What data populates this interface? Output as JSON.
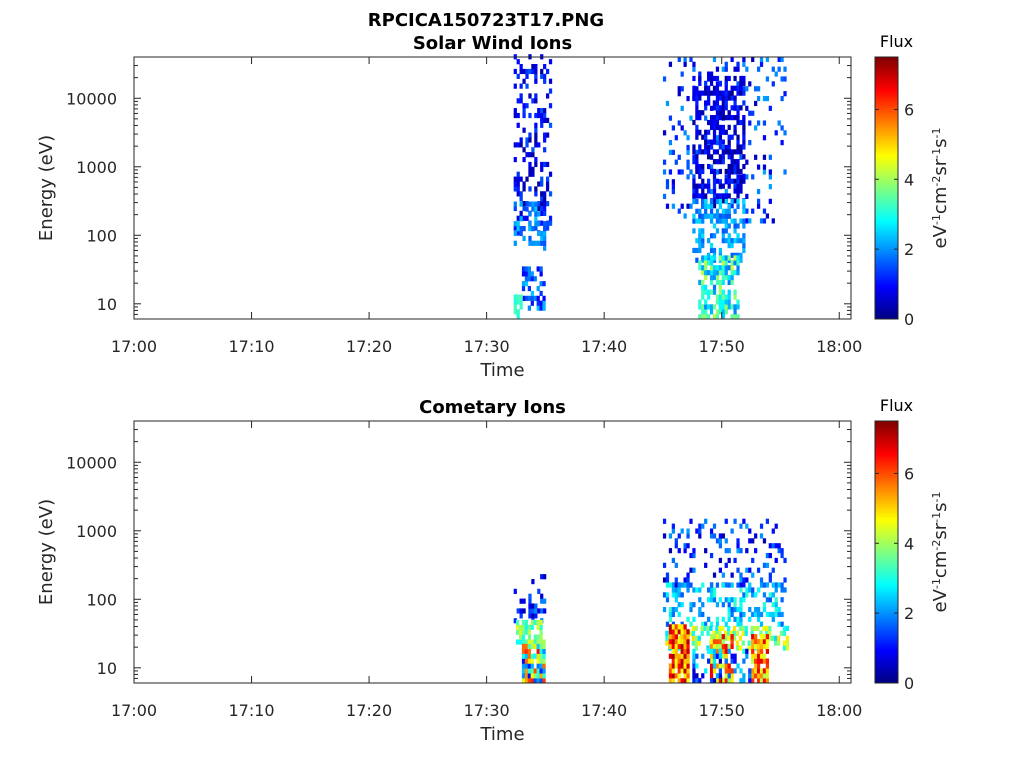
{
  "figure_title": "RPCICA150723T17.PNG",
  "chart_data": [
    {
      "type": "heatmap",
      "title": "Solar Wind Ions",
      "xlabel": "Time",
      "ylabel": "Energy (eV)",
      "y_scale": "log",
      "xlim_min": [
        0,
        61
      ],
      "ylim": [
        6,
        40000
      ],
      "x_ticks": [
        "17:00",
        "17:10",
        "17:20",
        "17:30",
        "17:40",
        "17:50",
        "18:00"
      ],
      "y_ticks": [
        "10",
        "100",
        "1000",
        "10000"
      ],
      "colorbar": {
        "title": "Flux",
        "label": "eV-1cm-2sr-1s-1",
        "range": [
          0,
          7.5
        ],
        "ticks": [
          "0",
          "2",
          "4",
          "6"
        ],
        "colormap": "jet"
      },
      "regions": [
        {
          "t": [
            32.3,
            35.5
          ],
          "e": [
            100,
            40000
          ],
          "density": 0.35,
          "flux": [
            0.2,
            1.6
          ]
        },
        {
          "t": [
            32.3,
            35.0
          ],
          "e": [
            60,
            300
          ],
          "density": 0.35,
          "flux": [
            1.5,
            2.5
          ]
        },
        {
          "t": [
            33.0,
            35.0
          ],
          "e": [
            8,
            35
          ],
          "density": 0.45,
          "flux": [
            0.8,
            2.5
          ]
        },
        {
          "t": [
            32.3,
            32.9
          ],
          "e": [
            6,
            12
          ],
          "density": 0.8,
          "flux": [
            3.0,
            3.4
          ]
        },
        {
          "t": [
            45.0,
            55.5
          ],
          "e": [
            150,
            40000
          ],
          "density": 0.12,
          "flux": [
            0.4,
            2.2
          ]
        },
        {
          "t": [
            47.5,
            52.0
          ],
          "e": [
            250,
            20000
          ],
          "density": 0.55,
          "flux": [
            0.1,
            1.3
          ]
        },
        {
          "t": [
            47.5,
            52.0
          ],
          "e": [
            40,
            300
          ],
          "density": 0.5,
          "flux": [
            1.5,
            2.6
          ]
        },
        {
          "t": [
            48.0,
            51.5
          ],
          "e": [
            6,
            45
          ],
          "density": 0.65,
          "flux": [
            1.8,
            4.3
          ]
        }
      ]
    },
    {
      "type": "heatmap",
      "title": "Cometary Ions",
      "xlabel": "Time",
      "ylabel": "Energy (eV)",
      "y_scale": "log",
      "xlim_min": [
        0,
        61
      ],
      "ylim": [
        6,
        40000
      ],
      "x_ticks": [
        "17:00",
        "17:10",
        "17:20",
        "17:30",
        "17:40",
        "17:50",
        "18:00"
      ],
      "y_ticks": [
        "10",
        "100",
        "1000",
        "10000"
      ],
      "colorbar": {
        "title": "Flux",
        "label": "eV-1cm-2sr-1s-1",
        "range": [
          0,
          7.5
        ],
        "ticks": [
          "0",
          "2",
          "4",
          "6"
        ],
        "colormap": "jet"
      },
      "regions": [
        {
          "t": [
            32.3,
            35.0
          ],
          "e": [
            45,
            200
          ],
          "density": 0.3,
          "flux": [
            0.3,
            2.0
          ]
        },
        {
          "t": [
            32.5,
            35.0
          ],
          "e": [
            22,
            45
          ],
          "density": 0.7,
          "flux": [
            2.8,
            4.5
          ]
        },
        {
          "t": [
            33.0,
            35.0
          ],
          "e": [
            6,
            22
          ],
          "density": 0.9,
          "flux": [
            1.0,
            6.5
          ]
        },
        {
          "t": [
            45.0,
            55.5
          ],
          "e": [
            150,
            1300
          ],
          "density": 0.2,
          "flux": [
            0.3,
            2.2
          ]
        },
        {
          "t": [
            45.0,
            55.5
          ],
          "e": [
            40,
            150
          ],
          "density": 0.35,
          "flux": [
            1.5,
            3.2
          ]
        },
        {
          "t": [
            45.2,
            55.5
          ],
          "e": [
            18,
            40
          ],
          "density": 0.55,
          "flux": [
            2.5,
            5.0
          ]
        },
        {
          "t": [
            45.5,
            47.2
          ],
          "e": [
            6,
            40
          ],
          "density": 0.9,
          "flux": [
            4.5,
            7.2
          ]
        },
        {
          "t": [
            49.0,
            51.0
          ],
          "e": [
            6,
            30
          ],
          "density": 0.8,
          "flux": [
            3.5,
            6.8
          ]
        },
        {
          "t": [
            52.5,
            54.0
          ],
          "e": [
            6,
            30
          ],
          "density": 0.8,
          "flux": [
            4.0,
            6.8
          ]
        },
        {
          "t": [
            47.5,
            52.5
          ],
          "e": [
            6,
            18
          ],
          "density": 0.35,
          "flux": [
            0.3,
            3.0
          ]
        }
      ]
    }
  ]
}
